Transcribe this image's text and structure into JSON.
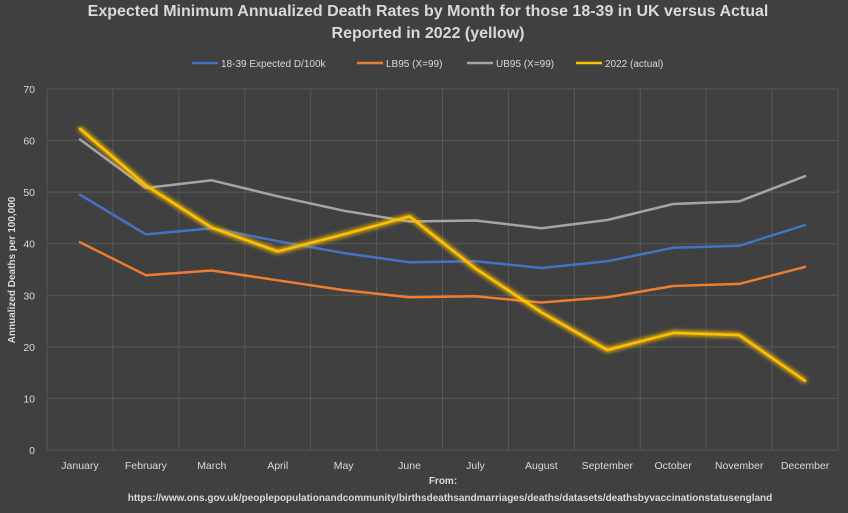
{
  "chart_data": {
    "type": "line",
    "title_lines": [
      "Expected Minimum Annualized Death Rates by Month for those 18-39 in UK versus Actual",
      "Reported in 2022 (yellow)"
    ],
    "ylabel": "Annualized Deaths per 100,000",
    "xlabel": "",
    "ylim": [
      0,
      70
    ],
    "yticks": [
      0,
      10,
      20,
      30,
      40,
      50,
      60,
      70
    ],
    "grid": true,
    "legend_position": "top",
    "categories": [
      "January",
      "February",
      "March",
      "April",
      "May",
      "June",
      "July",
      "August",
      "September",
      "October",
      "November",
      "December"
    ],
    "series": [
      {
        "name": "18-39  Expected D/100k",
        "color": "#4472c4",
        "glow": false,
        "values": [
          49.5,
          41.8,
          43.0,
          40.5,
          38.2,
          36.4,
          36.6,
          35.3,
          36.6,
          39.2,
          39.6,
          43.6
        ]
      },
      {
        "name": "LB95 (X=99)",
        "color": "#ed7d31",
        "glow": false,
        "values": [
          40.3,
          33.9,
          34.8,
          32.9,
          31.0,
          29.6,
          29.8,
          28.6,
          29.6,
          31.8,
          32.2,
          35.5
        ]
      },
      {
        "name": "UB95 (X=99)",
        "color": "#a5a5a5",
        "glow": false,
        "values": [
          60.2,
          50.8,
          52.3,
          49.2,
          46.4,
          44.3,
          44.5,
          43.0,
          44.6,
          47.7,
          48.2,
          53.1
        ]
      },
      {
        "name": "2022 (actual)",
        "color": "#ffc000",
        "glow": true,
        "values": [
          62.3,
          51.3,
          43.1,
          38.5,
          41.8,
          45.3,
          35.2,
          26.7,
          19.4,
          22.7,
          22.3,
          13.4
        ]
      }
    ],
    "source_lines": [
      "From:",
      "https://www.ons.gov.uk/peoplepopulationandcommunity/birthsdeathsandmarriages/deaths/datasets/deathsbyvaccinationstatusengland"
    ]
  }
}
